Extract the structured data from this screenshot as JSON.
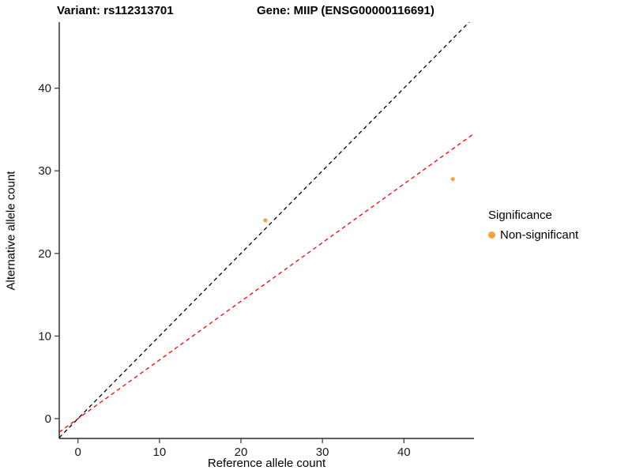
{
  "titles": {
    "left": "Variant: rs112313701",
    "right": "Gene: MIIP (ENSG00000116691)"
  },
  "axes": {
    "x_label": "Reference allele count",
    "y_label": "Alternative allele count"
  },
  "legend": {
    "title": "Significance",
    "items": [
      {
        "label": "Non-significant",
        "color": "#F9A13C"
      }
    ]
  },
  "chart_data": {
    "type": "scatter",
    "title_left": "Variant: rs112313701",
    "title_right": "Gene: MIIP (ENSG00000116691)",
    "xlabel": "Reference allele count",
    "ylabel": "Alternative allele count",
    "xlim": [
      -2.3,
      48.6
    ],
    "ylim": [
      -2.4,
      48.0
    ],
    "xticks": [
      0,
      10,
      20,
      30,
      40
    ],
    "yticks": [
      0,
      10,
      20,
      30,
      40
    ],
    "grid": false,
    "legend_position": "right",
    "point_color": "#F9A13C",
    "points": [
      {
        "x": 23,
        "y": 24,
        "series": "Non-significant"
      },
      {
        "x": 46,
        "y": 29,
        "series": "Non-significant"
      }
    ],
    "lines": [
      {
        "name": "identity",
        "slope": 1.0,
        "intercept": 0,
        "color": "#000000",
        "style": "dashed"
      },
      {
        "name": "fit",
        "slope": 0.71,
        "intercept": 0,
        "color": "#FF0000",
        "style": "dashed"
      }
    ]
  }
}
